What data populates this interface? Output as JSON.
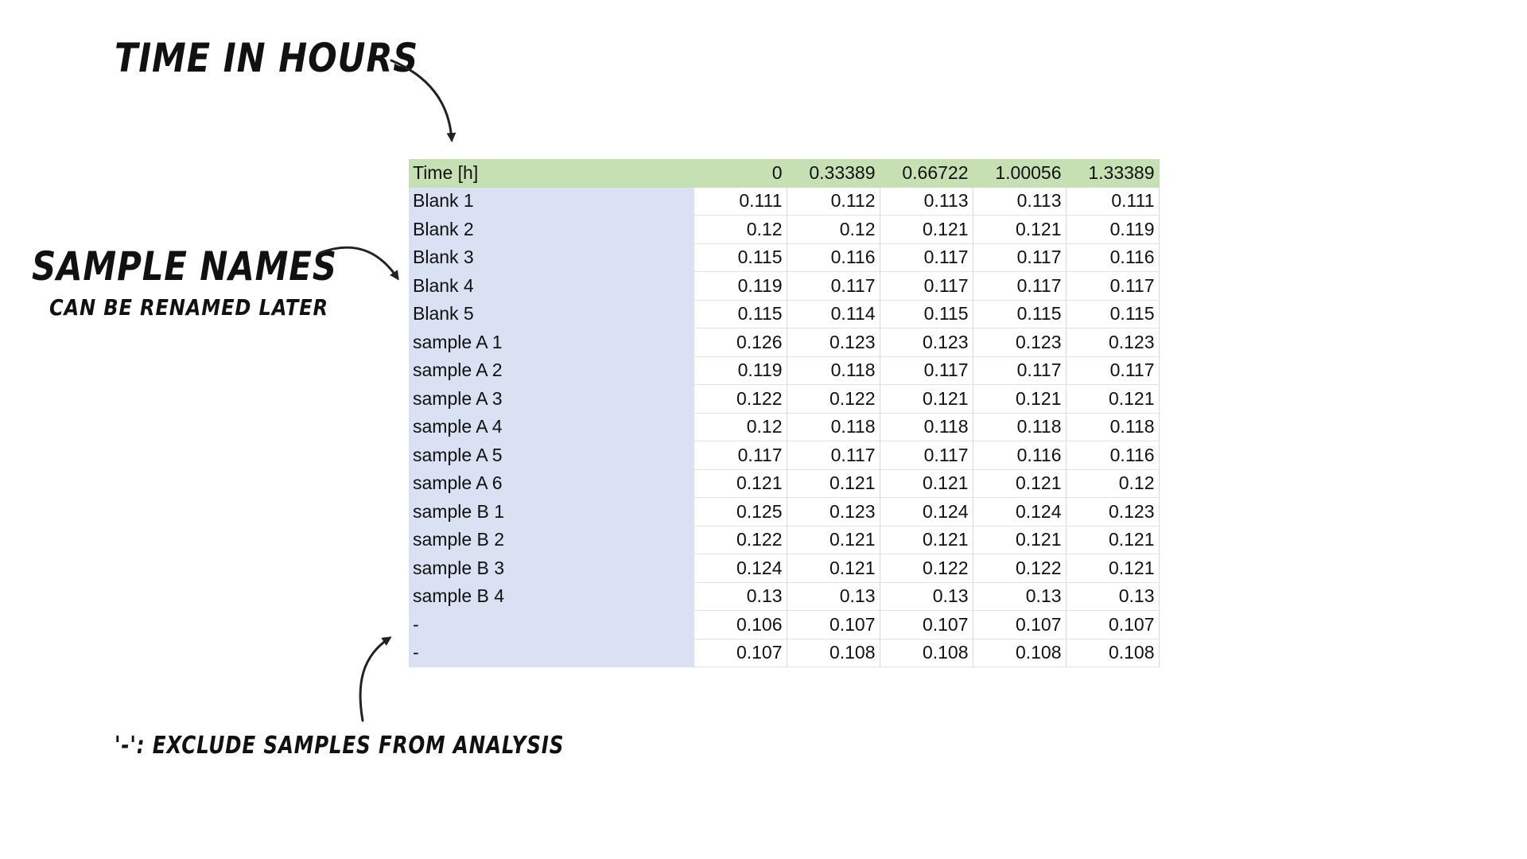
{
  "annotations": {
    "time_label": "Time in hours",
    "names_label": "Sample names",
    "rename_label": "can be renamed later",
    "exclude_label": "'-': exclude samples from analysis"
  },
  "table": {
    "header": [
      "Time [h]",
      "0",
      "0.33389",
      "0.66722",
      "1.00056",
      "1.33389"
    ],
    "rows": [
      [
        "Blank 1",
        "0.111",
        "0.112",
        "0.113",
        "0.113",
        "0.111"
      ],
      [
        "Blank 2",
        "0.12",
        "0.12",
        "0.121",
        "0.121",
        "0.119"
      ],
      [
        "Blank 3",
        "0.115",
        "0.116",
        "0.117",
        "0.117",
        "0.116"
      ],
      [
        "Blank 4",
        "0.119",
        "0.117",
        "0.117",
        "0.117",
        "0.117"
      ],
      [
        "Blank 5",
        "0.115",
        "0.114",
        "0.115",
        "0.115",
        "0.115"
      ],
      [
        "sample A 1",
        "0.126",
        "0.123",
        "0.123",
        "0.123",
        "0.123"
      ],
      [
        "sample A 2",
        "0.119",
        "0.118",
        "0.117",
        "0.117",
        "0.117"
      ],
      [
        "sample A 3",
        "0.122",
        "0.122",
        "0.121",
        "0.121",
        "0.121"
      ],
      [
        "sample A 4",
        "0.12",
        "0.118",
        "0.118",
        "0.118",
        "0.118"
      ],
      [
        "sample A 5",
        "0.117",
        "0.117",
        "0.117",
        "0.116",
        "0.116"
      ],
      [
        "sample A 6",
        "0.121",
        "0.121",
        "0.121",
        "0.121",
        "0.12"
      ],
      [
        "sample B 1",
        "0.125",
        "0.123",
        "0.124",
        "0.124",
        "0.123"
      ],
      [
        "sample B 2",
        "0.122",
        "0.121",
        "0.121",
        "0.121",
        "0.121"
      ],
      [
        "sample B 3",
        "0.124",
        "0.121",
        "0.122",
        "0.122",
        "0.121"
      ],
      [
        "sample B 4",
        "0.13",
        "0.13",
        "0.13",
        "0.13",
        "0.13"
      ],
      [
        "-",
        "0.106",
        "0.107",
        "0.107",
        "0.107",
        "0.107"
      ],
      [
        "-",
        "0.107",
        "0.108",
        "0.108",
        "0.108",
        "0.108"
      ]
    ]
  },
  "colors": {
    "header_fill": "#c6e0b4",
    "name_column_fill": "#d9e1f2"
  },
  "icons": [
    "curved-arrow-icon"
  ]
}
